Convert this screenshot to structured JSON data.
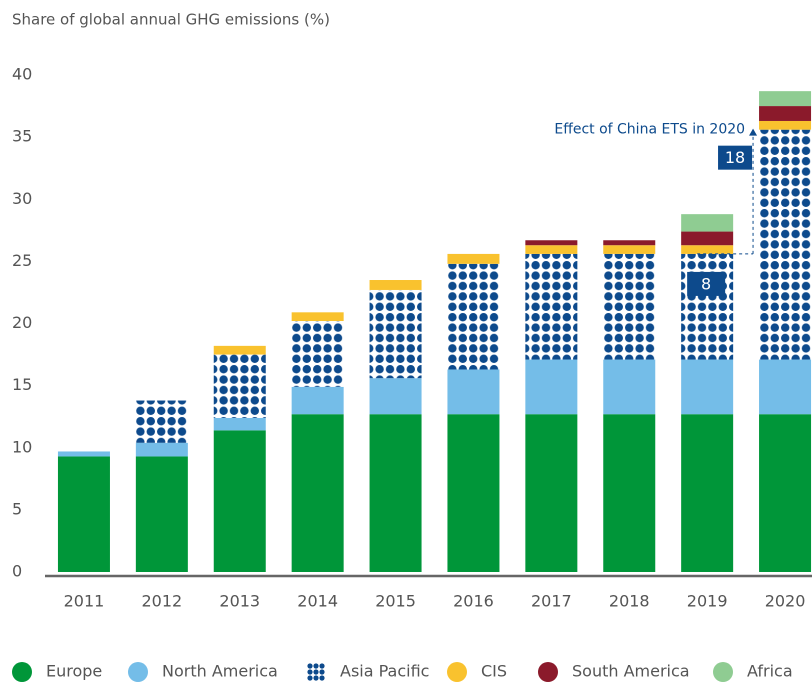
{
  "chart_data": {
    "type": "stacked_bar",
    "y_axis_label": "Share of global annual GHG emissions (%)",
    "categories": [
      "2011",
      "2012",
      "2013",
      "2014",
      "2015",
      "2016",
      "2017",
      "2018",
      "2019",
      "2020"
    ],
    "series": [
      {
        "name": "Europe",
        "color": "#009639",
        "values": [
          9.3,
          9.3,
          11.4,
          12.7,
          12.7,
          12.7,
          12.7,
          12.7,
          12.7,
          12.7
        ]
      },
      {
        "name": "North America",
        "color": "#74bde8",
        "values": [
          0.4,
          1.1,
          1.0,
          2.2,
          2.9,
          3.6,
          4.4,
          4.4,
          4.4,
          4.4
        ]
      },
      {
        "name": "Asia Pacific",
        "color": "#0d4a8c",
        "pattern": "dots",
        "values": [
          0,
          3.4,
          5.1,
          5.3,
          7.1,
          8.5,
          8.5,
          8.5,
          8.5,
          18.5
        ]
      },
      {
        "name": "CIS",
        "color": "#f9c22e",
        "values": [
          0,
          0,
          0.7,
          0.7,
          0.8,
          0.8,
          0.7,
          0.7,
          0.7,
          0.7
        ]
      },
      {
        "name": "South America",
        "color": "#8b1a2b",
        "values": [
          0,
          0,
          0,
          0,
          0,
          0,
          0.4,
          0.4,
          1.1,
          1.2
        ]
      },
      {
        "name": "Africa",
        "color": "#8fcc92",
        "values": [
          0,
          0,
          0,
          0,
          0,
          0,
          0,
          0,
          1.4,
          1.2
        ]
      }
    ],
    "annotations": [
      "Effect of China ETS in 2020",
      "18",
      "8"
    ],
    "ylim": [
      0,
      40
    ],
    "yticks": [
      0,
      5,
      10,
      15,
      20,
      25,
      30,
      35,
      40
    ],
    "grid": false,
    "legend": "bottom"
  }
}
